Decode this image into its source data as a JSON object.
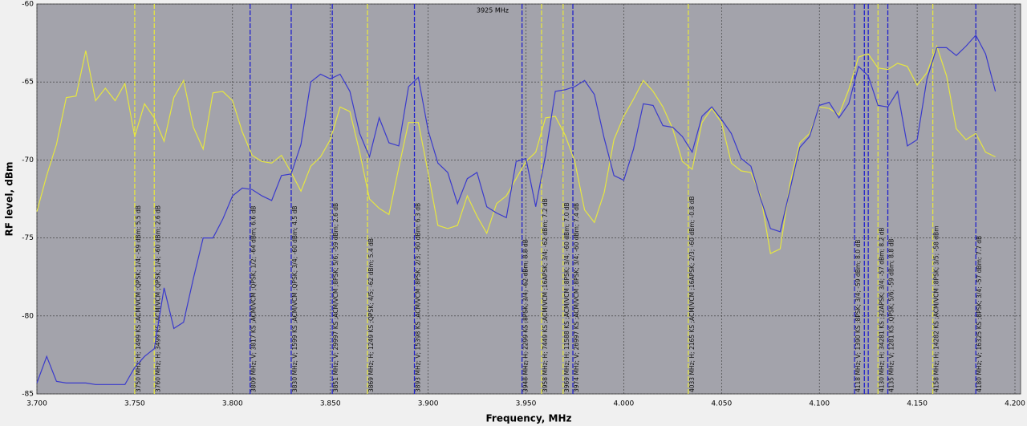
{
  "chart_data": {
    "type": "line",
    "xlabel": "Frequency, MHz",
    "ylabel": "RF level, dBm",
    "annotation": "3925 MHz",
    "xlim": [
      3.7,
      4.2
    ],
    "ylim": [
      -85,
      -60
    ],
    "xticks": [
      {
        "value": 3.7,
        "label": "3.700"
      },
      {
        "value": 3.75,
        "label": "3.750"
      },
      {
        "value": 3.8,
        "label": "3.800"
      },
      {
        "value": 3.85,
        "label": "3.850"
      },
      {
        "value": 3.9,
        "label": "3.900"
      },
      {
        "value": 3.95,
        "label": "3.950"
      },
      {
        "value": 4.0,
        "label": "4.000"
      },
      {
        "value": 4.05,
        "label": "4.050"
      },
      {
        "value": 4.1,
        "label": "4.100"
      },
      {
        "value": 4.15,
        "label": "4.150"
      },
      {
        "value": 4.2,
        "label": "4.200"
      }
    ],
    "yticks": [
      -60,
      -65,
      -70,
      -75,
      -80,
      -85
    ],
    "grid": true,
    "x": [
      3.7,
      3.705,
      3.71,
      3.715,
      3.72,
      3.725,
      3.73,
      3.735,
      3.74,
      3.745,
      3.75,
      3.755,
      3.76,
      3.765,
      3.77,
      3.775,
      3.78,
      3.785,
      3.79,
      3.795,
      3.8,
      3.805,
      3.81,
      3.815,
      3.82,
      3.825,
      3.83,
      3.835,
      3.84,
      3.845,
      3.85,
      3.855,
      3.86,
      3.865,
      3.87,
      3.875,
      3.88,
      3.885,
      3.89,
      3.895,
      3.9,
      3.905,
      3.91,
      3.915,
      3.92,
      3.925,
      3.93,
      3.935,
      3.94,
      3.945,
      3.95,
      3.955,
      3.96,
      3.965,
      3.97,
      3.975,
      3.98,
      3.985,
      3.99,
      3.995,
      4.0,
      4.005,
      4.01,
      4.015,
      4.02,
      4.025,
      4.03,
      4.035,
      4.04,
      4.045,
      4.05,
      4.055,
      4.06,
      4.065,
      4.07,
      4.075,
      4.08,
      4.085,
      4.09,
      4.095,
      4.1,
      4.105,
      4.11,
      4.115,
      4.12,
      4.125,
      4.13,
      4.135,
      4.14,
      4.145,
      4.15,
      4.155,
      4.16,
      4.165,
      4.17,
      4.175,
      4.18,
      4.185,
      4.19
    ],
    "series": [
      {
        "color": "#e6e640",
        "values": [
          -73.3,
          -71,
          -69,
          -66,
          -65.9,
          -63,
          -66.2,
          -65.4,
          -66.2,
          -65.1,
          -68.5,
          -66.4,
          -67.3,
          -68.8,
          -66,
          -64.9,
          -67.9,
          -69.3,
          -65.7,
          -65.6,
          -66.2,
          -68.2,
          -69.7,
          -70.1,
          -70.2,
          -69.7,
          -70.8,
          -72,
          -70.4,
          -69.8,
          -68.7,
          -66.6,
          -66.9,
          -69.5,
          -72.5,
          -73.1,
          -73.5,
          -70.5,
          -67.6,
          -67.6,
          -70.8,
          -74.2,
          -74.4,
          -74.2,
          -72.3,
          -73.6,
          -74.7,
          -72.8,
          -72.3,
          -71.2,
          -70.1,
          -69.5,
          -67.3,
          -67.2,
          -68.4,
          -70.1,
          -73.2,
          -74,
          -72.1,
          -68.7,
          -67.2,
          -66.1,
          -64.9,
          -65.6,
          -66.6,
          -68,
          -70.1,
          -70.6,
          -67.6,
          -66.7,
          -67.6,
          -70.2,
          -70.7,
          -70.8,
          -72.3,
          -76,
          -75.7,
          -71.5,
          -68.9,
          -68.3,
          -66.6,
          -66.7,
          -67.1,
          -65.5,
          -63.4,
          -63.2,
          -64.1,
          -64.2,
          -63.8,
          -64,
          -65.2,
          -64.4,
          -62.7,
          -64.6,
          -68,
          -68.7,
          -68.3,
          -69.5,
          -69.8
        ]
      },
      {
        "color": "#3a3acc",
        "values": [
          -84.3,
          -82.6,
          -84.2,
          -84.3,
          -84.3,
          -84.3,
          -84.4,
          -84.4,
          -84.4,
          -84.4,
          -83.3,
          -82.6,
          -82.1,
          -78.2,
          -80.8,
          -80.4,
          -77.6,
          -75,
          -75,
          -73.8,
          -72.3,
          -71.8,
          -71.9,
          -72.3,
          -72.6,
          -71,
          -70.9,
          -69,
          -65,
          -64.5,
          -64.8,
          -64.5,
          -65.6,
          -68.3,
          -69.8,
          -67.3,
          -68.9,
          -69.1,
          -65.3,
          -64.7,
          -68.1,
          -70.2,
          -70.8,
          -72.8,
          -71.2,
          -70.8,
          -73,
          -73.4,
          -73.7,
          -70.1,
          -69.9,
          -73,
          -69.7,
          -65.6,
          -65.5,
          -65.3,
          -64.9,
          -65.8,
          -68.6,
          -71,
          -71.3,
          -69.3,
          -66.4,
          -66.5,
          -67.8,
          -67.9,
          -68.5,
          -69.5,
          -67.2,
          -66.6,
          -67.4,
          -68.3,
          -69.9,
          -70.4,
          -72.5,
          -74.4,
          -74.6,
          -71.9,
          -69.2,
          -68.5,
          -66.5,
          -66.3,
          -67.3,
          -66.4,
          -64,
          -64.6,
          -66.5,
          -66.6,
          -65.6,
          -69.1,
          -68.7,
          -64.8,
          -62.8,
          -62.8,
          -63.3,
          -62.7,
          -62,
          -63.2,
          -65.6
        ]
      }
    ],
    "markers": [
      {
        "x": 3.75,
        "color": "#e6e640",
        "label": "3750 MHz; H; 1499 KS ;ACM/VCM ;QPSK; 1/4; -59 dBm; 5.5 dB"
      },
      {
        "x": 3.76,
        "color": "#e6e640",
        "label": "3760 MHz; H; 3499 KS ;ACM/VCM ;QPSK; 1/4; -60 dBm; 2.6 dB"
      },
      {
        "x": 3.809,
        "color": "#2222cc",
        "label": "3809 MHz; V; 3817 KS ;ACM/VCM ;QPSK; 1/2; -64 dBm; 6.6 dB"
      },
      {
        "x": 3.83,
        "color": "#2222cc",
        "label": "3830 MHz; V; 1599 KS ;ACM/VCM ;QPSK; 3/4; -60 dBm; 4.5 dB"
      },
      {
        "x": 3.851,
        "color": "#2222cc",
        "label": "3851 MHz; V; 29997 KS ;ACM/VCM ;8PSK; 5/6; -59 dBm; 2.6 dB"
      },
      {
        "x": 3.869,
        "color": "#e6e640",
        "label": "3869 MHz; H; 1249 KS ;QPSK; 4/5; -62 dBm; 5.4 dB"
      },
      {
        "x": 3.893,
        "color": "#2222cc",
        "label": "3893 MHz; V; 15398 KS ;ACM/VCM ;8PSK; 2/3; -60 dBm; 6.3 dB"
      },
      {
        "x": 3.948,
        "color": "#2222cc",
        "label": "3948 MHz; H; 2299 KS ;8PSK; 3/4; -62 dBm; 8.8 dB"
      },
      {
        "x": 3.958,
        "color": "#e6e640",
        "label": "3958 MHz; H; 7449 KS ;ACM/VCM ;16APSK; 3/4; -62 dBm; 7.2 dB"
      },
      {
        "x": 3.969,
        "color": "#e6e640",
        "label": "3969 MHz; H; 11588 KS ;ACM/VCM ;8PSK; 3/4; -60 dBm; 7.0 dB"
      },
      {
        "x": 3.974,
        "color": "#2222cc",
        "label": "3974 MHz; V; 26997 KS ;ACM/VCM ;8PSK; 3/4; -60 dBm; 7.4 dB"
      },
      {
        "x": 4.033,
        "color": "#e6e640",
        "label": "4033 MHz; H; 2165 KS ;ACM/VCM ;16APSK; 2/3; -60 dBm; -0.8 dB"
      },
      {
        "x": 4.118,
        "color": "#2222cc",
        "label": "4118 MHz; V; 1390 KS ;8PSK; 3/4; -59 dBm; 8.0 dB"
      },
      {
        "x": 4.123,
        "color": "#2222cc"
      },
      {
        "x": 4.125,
        "color": "#2222cc"
      },
      {
        "x": 4.13,
        "color": "#e6e640",
        "label": "4130 MHz; H; 34281 KS ;32APSK; 3/4; -57 dBm; 8.2 dB"
      },
      {
        "x": 4.135,
        "color": "#2222cc",
        "label": "4135 MHz; V; 1281 KS ;QPSK; 5/6; -59 dBm; 8.8 dB"
      },
      {
        "x": 4.158,
        "color": "#e6e640",
        "label": "4158 MHz; H; 14282 KS ;ACM/VCM ;8PSK; 3/5; -58 dBm"
      },
      {
        "x": 4.18,
        "color": "#2222cc",
        "label": "4180 MHz; V; 16325 KS ;8PSK; 3/4; -57 dBm; 7.7 dB"
      }
    ]
  }
}
